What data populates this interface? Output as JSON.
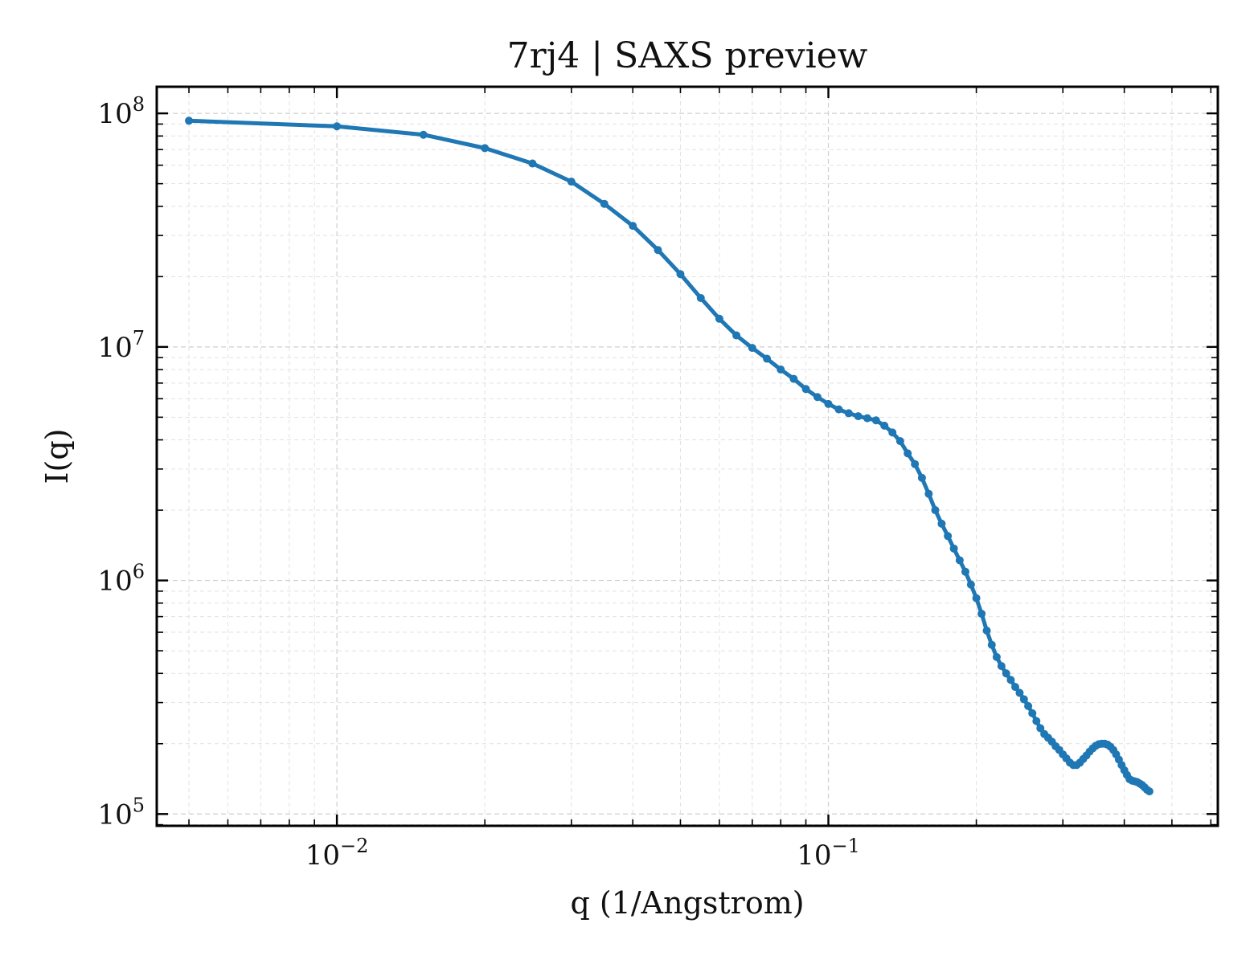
{
  "chart_data": {
    "type": "line",
    "title": "7rj4 | SAXS preview",
    "xlabel": "q (1/Angstrom)",
    "ylabel": "I(q)",
    "xscale": "log",
    "yscale": "log",
    "xlim": [
      0.0043,
      0.62
    ],
    "ylim": [
      89000,
      130000000
    ],
    "grid": true,
    "legend": "none",
    "x_ticks": [
      {
        "value": 0.01,
        "base": "10",
        "exp": "−2"
      },
      {
        "value": 0.1,
        "base": "10",
        "exp": "−1"
      }
    ],
    "y_ticks": [
      {
        "value": 100000,
        "base": "10",
        "exp": "5"
      },
      {
        "value": 1000000,
        "base": "10",
        "exp": "6"
      },
      {
        "value": 10000000,
        "base": "10",
        "exp": "7"
      },
      {
        "value": 100000000,
        "base": "10",
        "exp": "8"
      }
    ],
    "series": [
      {
        "color": "#1f77b4",
        "marker": "dot",
        "points": [
          [
            0.005,
            93000000
          ],
          [
            0.01,
            88000000
          ],
          [
            0.015,
            81000000
          ],
          [
            0.02,
            71000000
          ],
          [
            0.025,
            61000000
          ],
          [
            0.03,
            51000000
          ],
          [
            0.035,
            41000000
          ],
          [
            0.04,
            33000000
          ],
          [
            0.045,
            26000000
          ],
          [
            0.05,
            20500000
          ],
          [
            0.055,
            16200000
          ],
          [
            0.06,
            13200000
          ],
          [
            0.065,
            11200000
          ],
          [
            0.07,
            9900000
          ],
          [
            0.075,
            8900000
          ],
          [
            0.08,
            8000000
          ],
          [
            0.085,
            7300000
          ],
          [
            0.09,
            6600000
          ],
          [
            0.095,
            6100000
          ],
          [
            0.1,
            5700000
          ],
          [
            0.105,
            5400000
          ],
          [
            0.11,
            5200000
          ],
          [
            0.115,
            5050000
          ],
          [
            0.12,
            4950000
          ],
          [
            0.125,
            4850000
          ],
          [
            0.13,
            4600000
          ],
          [
            0.135,
            4300000
          ],
          [
            0.14,
            3950000
          ],
          [
            0.145,
            3500000
          ],
          [
            0.15,
            3150000
          ],
          [
            0.155,
            2750000
          ],
          [
            0.16,
            2350000
          ],
          [
            0.165,
            2000000
          ],
          [
            0.17,
            1750000
          ],
          [
            0.175,
            1550000
          ],
          [
            0.18,
            1370000
          ],
          [
            0.185,
            1220000
          ],
          [
            0.19,
            1090000
          ],
          [
            0.195,
            960000
          ],
          [
            0.2,
            840000
          ],
          [
            0.205,
            720000
          ],
          [
            0.21,
            610000
          ],
          [
            0.215,
            530000
          ],
          [
            0.22,
            470000
          ],
          [
            0.225,
            430000
          ],
          [
            0.23,
            400000
          ],
          [
            0.235,
            375000
          ],
          [
            0.24,
            350000
          ],
          [
            0.245,
            330000
          ],
          [
            0.25,
            310000
          ],
          [
            0.255,
            290000
          ],
          [
            0.26,
            270000
          ],
          [
            0.265,
            250000
          ],
          [
            0.27,
            233000
          ],
          [
            0.275,
            220000
          ],
          [
            0.28,
            212000
          ],
          [
            0.285,
            204000
          ],
          [
            0.29,
            195000
          ],
          [
            0.295,
            188000
          ],
          [
            0.3,
            180000
          ],
          [
            0.305,
            173000
          ],
          [
            0.31,
            166000
          ],
          [
            0.315,
            162000
          ],
          [
            0.32,
            162000
          ],
          [
            0.325,
            166000
          ],
          [
            0.33,
            172000
          ],
          [
            0.335,
            178000
          ],
          [
            0.34,
            185000
          ],
          [
            0.345,
            191000
          ],
          [
            0.35,
            196000
          ],
          [
            0.355,
            199000
          ],
          [
            0.36,
            200000
          ],
          [
            0.365,
            200000
          ],
          [
            0.37,
            198000
          ],
          [
            0.375,
            194000
          ],
          [
            0.38,
            188000
          ],
          [
            0.385,
            180000
          ],
          [
            0.39,
            171000
          ],
          [
            0.395,
            162000
          ],
          [
            0.4,
            154000
          ],
          [
            0.405,
            147000
          ],
          [
            0.41,
            141000
          ],
          [
            0.415,
            139000
          ],
          [
            0.42,
            138000
          ],
          [
            0.425,
            137000
          ],
          [
            0.43,
            135000
          ],
          [
            0.435,
            133000
          ],
          [
            0.44,
            130000
          ],
          [
            0.445,
            127000
          ],
          [
            0.45,
            125000
          ]
        ]
      }
    ]
  }
}
